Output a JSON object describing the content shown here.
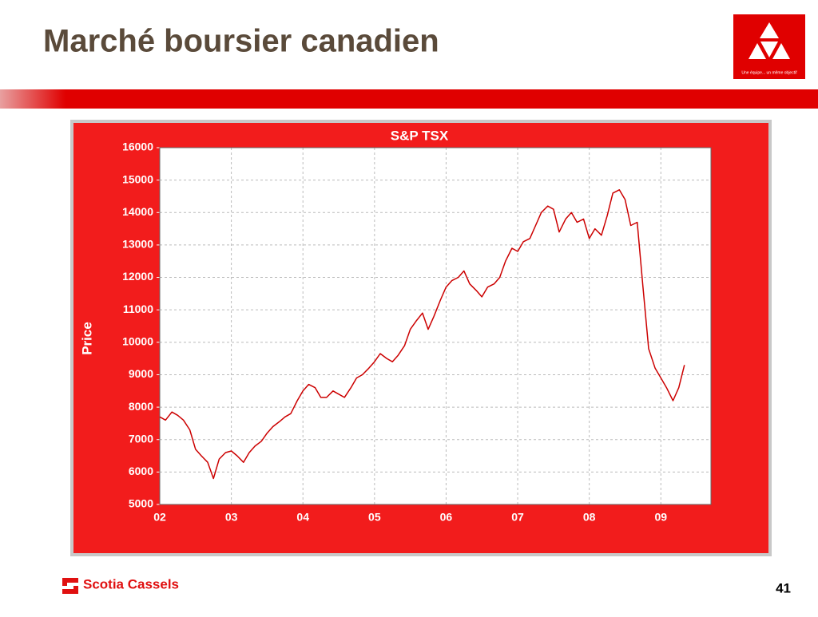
{
  "slide": {
    "title": "Marché boursier canadien",
    "logo_tagline": "Une équipe... un même objectif",
    "footer_brand": "Scotia Cassels",
    "page_number": "41"
  },
  "chart_data": {
    "type": "line",
    "title": "S&P TSX",
    "y_label": "Price",
    "color": "#cc0000",
    "grid": true,
    "xlim": [
      2002,
      2009.7
    ],
    "xticks": [
      {
        "value": 2002,
        "label": "02"
      },
      {
        "value": 2003,
        "label": "03"
      },
      {
        "value": 2004,
        "label": "04"
      },
      {
        "value": 2005,
        "label": "05"
      },
      {
        "value": 2006,
        "label": "06"
      },
      {
        "value": 2007,
        "label": "07"
      },
      {
        "value": 2008,
        "label": "08"
      },
      {
        "value": 2009,
        "label": "09"
      }
    ],
    "ylim": [
      5000,
      16000
    ],
    "yticks": [
      5000,
      6000,
      7000,
      8000,
      9000,
      10000,
      11000,
      12000,
      13000,
      14000,
      15000,
      16000
    ],
    "x": [
      2002.0,
      2002.08,
      2002.17,
      2002.25,
      2002.33,
      2002.42,
      2002.5,
      2002.58,
      2002.67,
      2002.75,
      2002.83,
      2002.92,
      2003.0,
      2003.08,
      2003.17,
      2003.25,
      2003.33,
      2003.42,
      2003.5,
      2003.58,
      2003.67,
      2003.75,
      2003.83,
      2003.92,
      2004.0,
      2004.08,
      2004.17,
      2004.25,
      2004.33,
      2004.42,
      2004.5,
      2004.58,
      2004.67,
      2004.75,
      2004.83,
      2004.92,
      2005.0,
      2005.08,
      2005.17,
      2005.25,
      2005.33,
      2005.42,
      2005.5,
      2005.58,
      2005.67,
      2005.75,
      2005.83,
      2005.92,
      2006.0,
      2006.08,
      2006.17,
      2006.25,
      2006.33,
      2006.42,
      2006.5,
      2006.58,
      2006.67,
      2006.75,
      2006.83,
      2006.92,
      2007.0,
      2007.08,
      2007.17,
      2007.25,
      2007.33,
      2007.42,
      2007.5,
      2007.58,
      2007.67,
      2007.75,
      2007.83,
      2007.92,
      2008.0,
      2008.08,
      2008.17,
      2008.25,
      2008.33,
      2008.42,
      2008.5,
      2008.58,
      2008.67,
      2008.75,
      2008.83,
      2008.92,
      2009.0,
      2009.08,
      2009.17,
      2009.25,
      2009.33
    ],
    "values": [
      7700,
      7600,
      7850,
      7750,
      7600,
      7300,
      6700,
      6500,
      6300,
      5800,
      6400,
      6600,
      6650,
      6500,
      6300,
      6600,
      6800,
      6950,
      7200,
      7400,
      7550,
      7700,
      7800,
      8200,
      8500,
      8700,
      8600,
      8300,
      8300,
      8500,
      8400,
      8300,
      8600,
      8900,
      9000,
      9200,
      9400,
      9650,
      9500,
      9400,
      9600,
      9900,
      10400,
      10650,
      10900,
      10400,
      10800,
      11300,
      11700,
      11900,
      12000,
      12200,
      11800,
      11600,
      11400,
      11700,
      11800,
      12000,
      12500,
      12900,
      12800,
      13100,
      13200,
      13600,
      14000,
      14200,
      14100,
      13400,
      13800,
      14000,
      13700,
      13800,
      13200,
      13500,
      13300,
      13900,
      14600,
      14700,
      14400,
      13600,
      13700,
      11700,
      9800,
      9200,
      8900,
      8600,
      8200,
      8600,
      9300
    ]
  }
}
